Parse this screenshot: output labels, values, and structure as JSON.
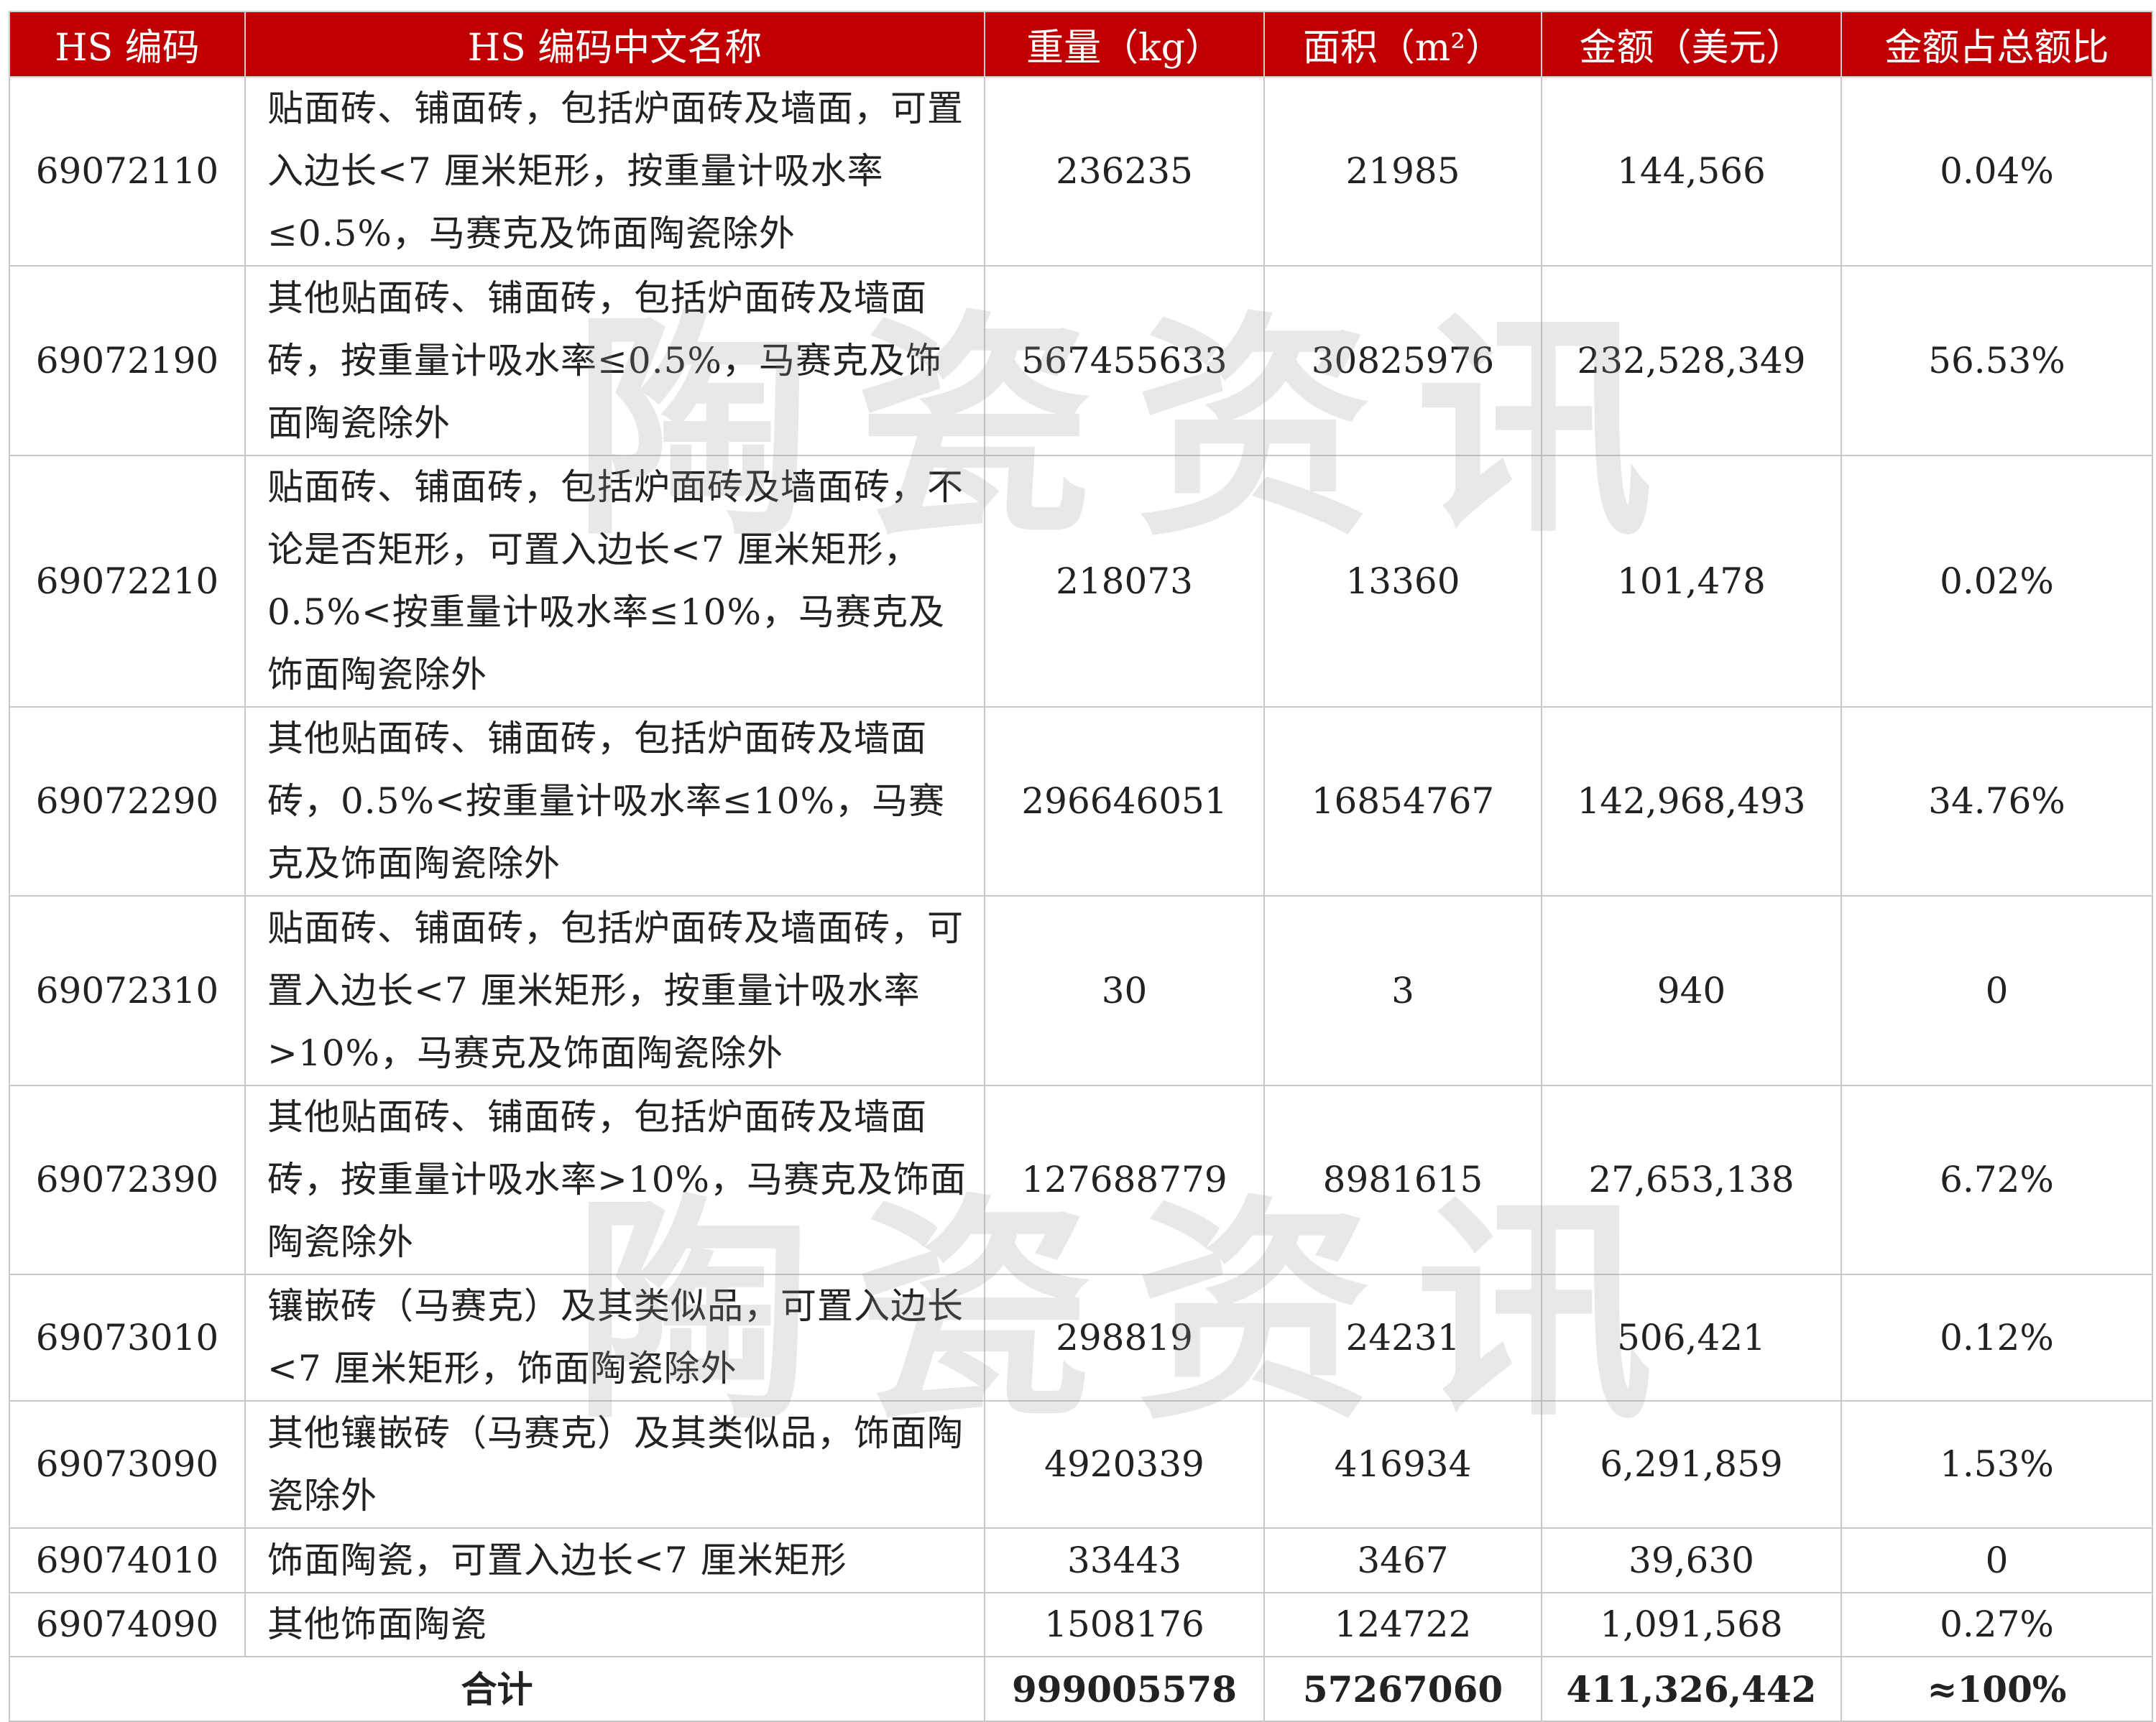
{
  "table": {
    "headers": [
      "HS 编码",
      "HS 编码中文名称",
      "重量（kg）",
      "面积（m²）",
      "金额（美元）",
      "金额占总额比"
    ],
    "rows": [
      {
        "code": "69072110",
        "name": "贴面砖、铺面砖，包括炉面砖及墙面，可置入边长<7 厘米矩形，按重量计吸水率≤0.5%，马赛克及饰面陶瓷除外",
        "weight": "236235",
        "area": "21985",
        "amount": "144,566",
        "share": "0.04%"
      },
      {
        "code": "69072190",
        "name": "其他贴面砖、铺面砖，包括炉面砖及墙面砖，按重量计吸水率≤0.5%，马赛克及饰面陶瓷除外",
        "weight": "567455633",
        "area": "30825976",
        "amount": "232,528,349",
        "share": "56.53%"
      },
      {
        "code": "69072210",
        "name": "贴面砖、铺面砖，包括炉面砖及墙面砖，不论是否矩形，可置入边长<7 厘米矩形，0.5%<按重量计吸水率≤10%，马赛克及饰面陶瓷除外",
        "weight": "218073",
        "area": "13360",
        "amount": "101,478",
        "share": "0.02%"
      },
      {
        "code": "69072290",
        "name": "其他贴面砖、铺面砖，包括炉面砖及墙面砖，0.5%<按重量计吸水率≤10%，马赛克及饰面陶瓷除外",
        "weight": "296646051",
        "area": "16854767",
        "amount": "142,968,493",
        "share": "34.76%"
      },
      {
        "code": "69072310",
        "name": "贴面砖、铺面砖，包括炉面砖及墙面砖，可置入边长<7 厘米矩形，按重量计吸水率>10%，马赛克及饰面陶瓷除外",
        "weight": "30",
        "area": "3",
        "amount": "940",
        "share": "0"
      },
      {
        "code": "69072390",
        "name": "其他贴面砖、铺面砖，包括炉面砖及墙面砖，按重量计吸水率>10%，马赛克及饰面陶瓷除外",
        "weight": "127688779",
        "area": "8981615",
        "amount": "27,653,138",
        "share": "6.72%"
      },
      {
        "code": "69073010",
        "name": "镶嵌砖（马赛克）及其类似品，可置入边长<7 厘米矩形，饰面陶瓷除外",
        "weight": "298819",
        "area": "24231",
        "amount": "506,421",
        "share": "0.12%"
      },
      {
        "code": "69073090",
        "name": "其他镶嵌砖（马赛克）及其类似品，饰面陶瓷除外",
        "weight": "4920339",
        "area": "416934",
        "amount": "6,291,859",
        "share": "1.53%"
      },
      {
        "code": "69074010",
        "name": "饰面陶瓷，可置入边长<7 厘米矩形",
        "weight": "33443",
        "area": "3467",
        "amount": "39,630",
        "share": "0"
      },
      {
        "code": "69074090",
        "name": "其他饰面陶瓷",
        "weight": "1508176",
        "area": "124722",
        "amount": "1,091,568",
        "share": "0.27%"
      }
    ],
    "total": {
      "label": "合计",
      "weight": "999005578",
      "area": "57267060",
      "amount": "411,326,442",
      "share": "≈100%"
    }
  },
  "watermark": "陶瓷资讯",
  "colors": {
    "header_bg": "#c00000",
    "header_text": "#ffffff"
  }
}
